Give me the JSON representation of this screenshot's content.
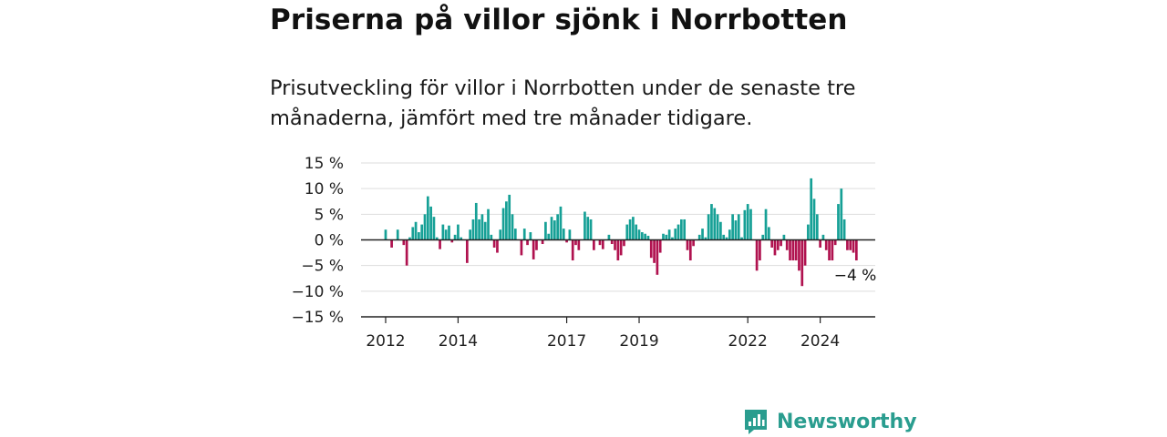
{
  "title": "Priserna på villor sjönk i Norrbotten",
  "subtitle": "Prisutveckling för villor i Norrbotten under de senaste tre månaderna, jämfört med tre månader tidigare.",
  "brand": {
    "name": "Newsworthy",
    "color": "#2a9d8f"
  },
  "colors": {
    "positive": "#16a096",
    "negative": "#b0124f",
    "grid": "#dddddd",
    "axis": "#222222"
  },
  "chart_data": {
    "type": "bar",
    "unit": "%",
    "ylim": [
      -15,
      15
    ],
    "y_ticks": [
      15,
      10,
      5,
      0,
      -5,
      -10,
      -15
    ],
    "y_tick_labels": [
      "15 %",
      "10 %",
      "5 %",
      "0 %",
      "−5 %",
      "−10 %",
      "−15 %"
    ],
    "x_tick_labels": [
      "2012",
      "2014",
      "2017",
      "2019",
      "2022",
      "2024"
    ],
    "x_tick_dates": [
      "2012-01",
      "2014-01",
      "2017-01",
      "2019-01",
      "2022-01",
      "2024-01"
    ],
    "grid": true,
    "annotation": {
      "label": "−4 %",
      "date": "2025-01",
      "value": -4
    },
    "series": [
      {
        "values": [
          {
            "date": "2012-01",
            "value": 2
          },
          {
            "date": "2012-03",
            "value": -1.5
          },
          {
            "date": "2012-05",
            "value": 2
          },
          {
            "date": "2012-07",
            "value": -1
          },
          {
            "date": "2012-08",
            "value": -5
          },
          {
            "date": "2012-09",
            "value": 0.5
          },
          {
            "date": "2012-10",
            "value": 2.5
          },
          {
            "date": "2012-11",
            "value": 3.5
          },
          {
            "date": "2012-12",
            "value": 1.5
          },
          {
            "date": "2013-01",
            "value": 3
          },
          {
            "date": "2013-02",
            "value": 5
          },
          {
            "date": "2013-03",
            "value": 8.5
          },
          {
            "date": "2013-04",
            "value": 6.5
          },
          {
            "date": "2013-05",
            "value": 4.5
          },
          {
            "date": "2013-06",
            "value": 0.5
          },
          {
            "date": "2013-07",
            "value": -1.8
          },
          {
            "date": "2013-08",
            "value": 3
          },
          {
            "date": "2013-09",
            "value": 2
          },
          {
            "date": "2013-10",
            "value": 2.8
          },
          {
            "date": "2013-11",
            "value": -0.5
          },
          {
            "date": "2013-12",
            "value": 1
          },
          {
            "date": "2014-01",
            "value": 3
          },
          {
            "date": "2014-02",
            "value": 0.5
          },
          {
            "date": "2014-04",
            "value": -4.5
          },
          {
            "date": "2014-05",
            "value": 2
          },
          {
            "date": "2014-06",
            "value": 4
          },
          {
            "date": "2014-07",
            "value": 7.2
          },
          {
            "date": "2014-08",
            "value": 4
          },
          {
            "date": "2014-09",
            "value": 5
          },
          {
            "date": "2014-10",
            "value": 3.5
          },
          {
            "date": "2014-11",
            "value": 6
          },
          {
            "date": "2014-12",
            "value": 1
          },
          {
            "date": "2015-01",
            "value": -1.5
          },
          {
            "date": "2015-02",
            "value": -2.5
          },
          {
            "date": "2015-03",
            "value": 2
          },
          {
            "date": "2015-04",
            "value": 6.2
          },
          {
            "date": "2015-05",
            "value": 7.5
          },
          {
            "date": "2015-06",
            "value": 8.8
          },
          {
            "date": "2015-07",
            "value": 5
          },
          {
            "date": "2015-08",
            "value": 2.2
          },
          {
            "date": "2015-10",
            "value": -3
          },
          {
            "date": "2015-11",
            "value": 2.2
          },
          {
            "date": "2015-12",
            "value": -1
          },
          {
            "date": "2016-01",
            "value": 1.5
          },
          {
            "date": "2016-02",
            "value": -3.8
          },
          {
            "date": "2016-03",
            "value": -2
          },
          {
            "date": "2016-05",
            "value": -0.8
          },
          {
            "date": "2016-06",
            "value": 3.5
          },
          {
            "date": "2016-07",
            "value": 1.2
          },
          {
            "date": "2016-08",
            "value": 4.5
          },
          {
            "date": "2016-09",
            "value": 3.8
          },
          {
            "date": "2016-10",
            "value": 5
          },
          {
            "date": "2016-11",
            "value": 6.5
          },
          {
            "date": "2016-12",
            "value": 2.2
          },
          {
            "date": "2017-01",
            "value": -0.5
          },
          {
            "date": "2017-02",
            "value": 2
          },
          {
            "date": "2017-03",
            "value": -4
          },
          {
            "date": "2017-04",
            "value": -1
          },
          {
            "date": "2017-05",
            "value": -2
          },
          {
            "date": "2017-07",
            "value": 5.5
          },
          {
            "date": "2017-08",
            "value": 4.5
          },
          {
            "date": "2017-09",
            "value": 4
          },
          {
            "date": "2017-10",
            "value": -2
          },
          {
            "date": "2017-12",
            "value": -1
          },
          {
            "date": "2018-01",
            "value": -1.8
          },
          {
            "date": "2018-03",
            "value": 1
          },
          {
            "date": "2018-04",
            "value": -0.8
          },
          {
            "date": "2018-05",
            "value": -2
          },
          {
            "date": "2018-06",
            "value": -4
          },
          {
            "date": "2018-07",
            "value": -3
          },
          {
            "date": "2018-08",
            "value": -1.2
          },
          {
            "date": "2018-09",
            "value": 3
          },
          {
            "date": "2018-10",
            "value": 4
          },
          {
            "date": "2018-11",
            "value": 4.5
          },
          {
            "date": "2018-12",
            "value": 3
          },
          {
            "date": "2019-01",
            "value": 2
          },
          {
            "date": "2019-02",
            "value": 1.5
          },
          {
            "date": "2019-03",
            "value": 1.2
          },
          {
            "date": "2019-04",
            "value": 0.8
          },
          {
            "date": "2019-05",
            "value": -3.5
          },
          {
            "date": "2019-06",
            "value": -4.5
          },
          {
            "date": "2019-07",
            "value": -6.8
          },
          {
            "date": "2019-08",
            "value": -2.5
          },
          {
            "date": "2019-09",
            "value": 1.2
          },
          {
            "date": "2019-10",
            "value": 1
          },
          {
            "date": "2019-11",
            "value": 2
          },
          {
            "date": "2019-12",
            "value": 0.5
          },
          {
            "date": "2020-01",
            "value": 2.2
          },
          {
            "date": "2020-02",
            "value": 3
          },
          {
            "date": "2020-03",
            "value": 4
          },
          {
            "date": "2020-04",
            "value": 4
          },
          {
            "date": "2020-05",
            "value": -2
          },
          {
            "date": "2020-06",
            "value": -4
          },
          {
            "date": "2020-07",
            "value": -1.2
          },
          {
            "date": "2020-09",
            "value": 1
          },
          {
            "date": "2020-10",
            "value": 2.2
          },
          {
            "date": "2020-11",
            "value": 0.5
          },
          {
            "date": "2020-12",
            "value": 5
          },
          {
            "date": "2021-01",
            "value": 7
          },
          {
            "date": "2021-02",
            "value": 6.2
          },
          {
            "date": "2021-03",
            "value": 5
          },
          {
            "date": "2021-04",
            "value": 3.5
          },
          {
            "date": "2021-05",
            "value": 1
          },
          {
            "date": "2021-06",
            "value": 0.5
          },
          {
            "date": "2021-07",
            "value": 2
          },
          {
            "date": "2021-08",
            "value": 5
          },
          {
            "date": "2021-09",
            "value": 3.8
          },
          {
            "date": "2021-10",
            "value": 5
          },
          {
            "date": "2021-11",
            "value": 0.5
          },
          {
            "date": "2021-12",
            "value": 5.8
          },
          {
            "date": "2022-01",
            "value": 7
          },
          {
            "date": "2022-02",
            "value": 6
          },
          {
            "date": "2022-04",
            "value": -6
          },
          {
            "date": "2022-05",
            "value": -4
          },
          {
            "date": "2022-06",
            "value": 1
          },
          {
            "date": "2022-07",
            "value": 6
          },
          {
            "date": "2022-08",
            "value": 2.5
          },
          {
            "date": "2022-09",
            "value": -1.5
          },
          {
            "date": "2022-10",
            "value": -3
          },
          {
            "date": "2022-11",
            "value": -2
          },
          {
            "date": "2022-12",
            "value": -1.2
          },
          {
            "date": "2023-01",
            "value": 1
          },
          {
            "date": "2023-02",
            "value": -2
          },
          {
            "date": "2023-03",
            "value": -4
          },
          {
            "date": "2023-04",
            "value": -4
          },
          {
            "date": "2023-05",
            "value": -4
          },
          {
            "date": "2023-06",
            "value": -6
          },
          {
            "date": "2023-07",
            "value": -9
          },
          {
            "date": "2023-08",
            "value": -5
          },
          {
            "date": "2023-09",
            "value": 3
          },
          {
            "date": "2023-10",
            "value": 12
          },
          {
            "date": "2023-11",
            "value": 8
          },
          {
            "date": "2023-12",
            "value": 5
          },
          {
            "date": "2024-01",
            "value": -1.5
          },
          {
            "date": "2024-02",
            "value": 1
          },
          {
            "date": "2024-03",
            "value": -2
          },
          {
            "date": "2024-04",
            "value": -4
          },
          {
            "date": "2024-05",
            "value": -4
          },
          {
            "date": "2024-06",
            "value": -1
          },
          {
            "date": "2024-07",
            "value": 7
          },
          {
            "date": "2024-08",
            "value": 10
          },
          {
            "date": "2024-09",
            "value": 4
          },
          {
            "date": "2024-10",
            "value": -2
          },
          {
            "date": "2024-11",
            "value": -2
          },
          {
            "date": "2024-12",
            "value": -2.5
          },
          {
            "date": "2025-01",
            "value": -4
          }
        ]
      }
    ]
  }
}
